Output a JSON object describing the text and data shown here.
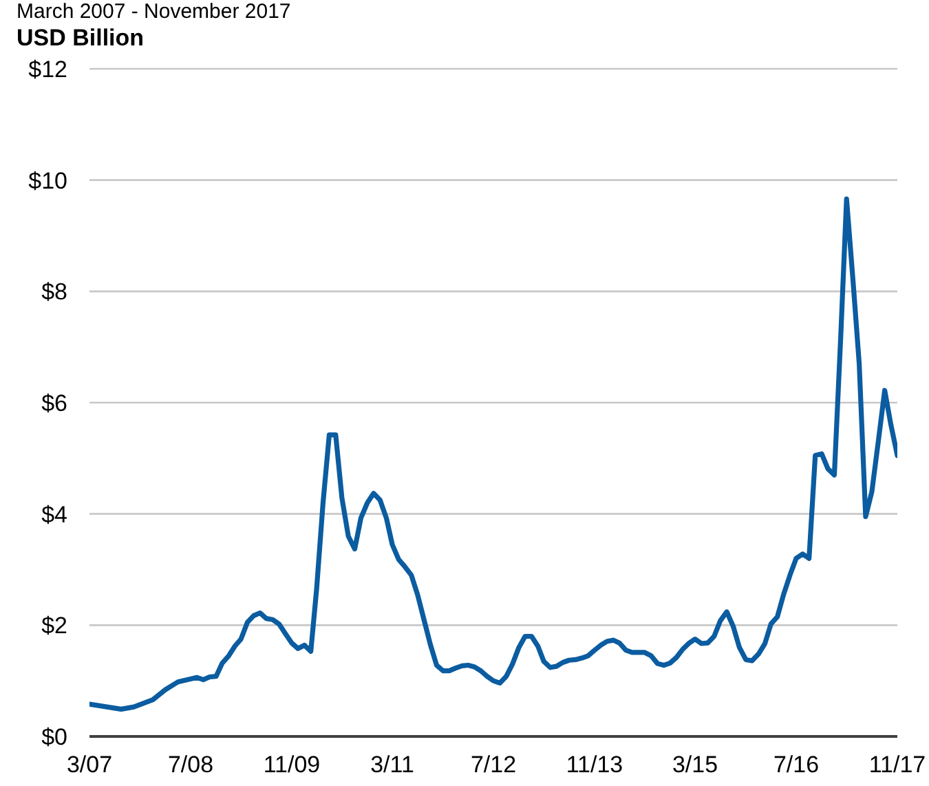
{
  "chart_data": {
    "type": "line",
    "title": "March 2007 - November 2017",
    "ylabel": "USD Billion",
    "x": [
      "2007-03",
      "2007-08",
      "2007-10",
      "2008-01",
      "2008-03",
      "2008-05",
      "2008-08",
      "2008-09",
      "2008-10",
      "2008-11",
      "2008-12",
      "2009-01",
      "2009-02",
      "2009-03",
      "2009-04",
      "2009-05",
      "2009-06",
      "2009-07",
      "2009-08",
      "2009-09",
      "2009-10",
      "2009-11",
      "2009-12",
      "2010-01",
      "2010-02",
      "2010-03",
      "2010-04",
      "2010-05",
      "2010-06",
      "2010-07",
      "2010-08",
      "2010-09",
      "2010-10",
      "2010-11",
      "2010-12",
      "2011-01",
      "2011-02",
      "2011-03",
      "2011-04",
      "2011-05",
      "2011-06",
      "2011-07",
      "2011-08",
      "2011-09",
      "2011-10",
      "2011-11",
      "2011-12",
      "2012-01",
      "2012-02",
      "2012-03",
      "2012-04",
      "2012-05",
      "2012-06",
      "2012-07",
      "2012-08",
      "2012-09",
      "2012-10",
      "2012-11",
      "2012-12",
      "2013-01",
      "2013-02",
      "2013-03",
      "2013-04",
      "2013-05",
      "2013-06",
      "2013-07",
      "2013-08",
      "2013-09",
      "2013-10",
      "2013-11",
      "2013-12",
      "2014-01",
      "2014-02",
      "2014-03",
      "2014-04",
      "2014-05",
      "2014-06",
      "2014-07",
      "2014-08",
      "2014-09",
      "2014-10",
      "2014-11",
      "2014-12",
      "2015-01",
      "2015-02",
      "2015-03",
      "2015-04",
      "2015-05",
      "2015-06",
      "2015-07",
      "2015-08",
      "2015-09",
      "2015-10",
      "2015-11",
      "2015-12",
      "2016-01",
      "2016-02",
      "2016-03",
      "2016-04",
      "2016-05",
      "2016-06",
      "2016-07",
      "2016-08",
      "2016-09",
      "2016-10",
      "2016-11",
      "2016-12",
      "2017-01",
      "2017-02",
      "2017-03",
      "2017-04",
      "2017-05",
      "2017-06",
      "2017-07",
      "2017-08",
      "2017-09",
      "2017-10",
      "2017-11"
    ],
    "values": [
      0.58,
      0.49,
      0.53,
      0.66,
      0.84,
      0.98,
      1.06,
      1.02,
      1.07,
      1.08,
      1.32,
      1.45,
      1.63,
      1.75,
      2.05,
      2.17,
      2.22,
      2.12,
      2.1,
      2.02,
      1.85,
      1.68,
      1.58,
      1.64,
      1.53,
      2.65,
      4.2,
      5.42,
      5.42,
      4.29,
      3.6,
      3.37,
      3.93,
      4.2,
      4.37,
      4.25,
      3.92,
      3.45,
      3.18,
      3.05,
      2.9,
      2.55,
      2.1,
      1.65,
      1.28,
      1.18,
      1.18,
      1.23,
      1.27,
      1.28,
      1.25,
      1.18,
      1.08,
      1.0,
      0.96,
      1.08,
      1.3,
      1.6,
      1.8,
      1.8,
      1.62,
      1.35,
      1.24,
      1.26,
      1.33,
      1.37,
      1.38,
      1.41,
      1.45,
      1.55,
      1.64,
      1.71,
      1.73,
      1.68,
      1.55,
      1.51,
      1.51,
      1.51,
      1.45,
      1.31,
      1.28,
      1.32,
      1.42,
      1.57,
      1.68,
      1.75,
      1.67,
      1.68,
      1.8,
      2.08,
      2.24,
      1.98,
      1.6,
      1.38,
      1.36,
      1.48,
      1.67,
      2.02,
      2.15,
      2.55,
      2.9,
      3.2,
      3.28,
      3.2,
      5.05,
      5.08,
      4.81,
      4.7,
      7.2,
      9.66,
      8.2,
      6.7,
      3.95,
      4.4,
      5.3,
      6.22,
      5.6,
      5.05
    ],
    "color": "#0b5ca0",
    "xlim": [
      "2007-03",
      "2017-11"
    ],
    "xticks": [
      {
        "value": "2007-03",
        "label": "3/07"
      },
      {
        "value": "2008-07",
        "label": "7/08"
      },
      {
        "value": "2009-11",
        "label": "11/09"
      },
      {
        "value": "2011-03",
        "label": "3/11"
      },
      {
        "value": "2012-07",
        "label": "7/12"
      },
      {
        "value": "2013-11",
        "label": "11/13"
      },
      {
        "value": "2015-03",
        "label": "3/15"
      },
      {
        "value": "2016-07",
        "label": "7/16"
      },
      {
        "value": "2017-11",
        "label": "11/17"
      }
    ],
    "ylim": [
      0,
      12
    ],
    "yticks": [
      {
        "value": 0,
        "label": "$0"
      },
      {
        "value": 2,
        "label": "$2"
      },
      {
        "value": 4,
        "label": "$4"
      },
      {
        "value": 6,
        "label": "$6"
      },
      {
        "value": 8,
        "label": "$8"
      },
      {
        "value": 10,
        "label": "$10"
      },
      {
        "value": 12,
        "label": "$12"
      }
    ],
    "grid": "y",
    "marker": "none"
  }
}
